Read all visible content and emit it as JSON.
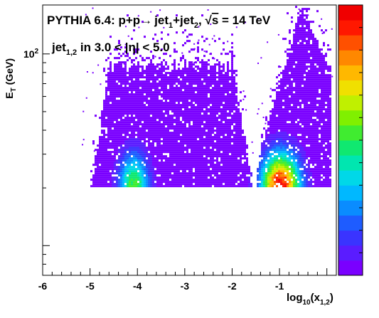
{
  "chart_data": {
    "type": "heatmap",
    "annotations": {
      "line1": {
        "pre": "PYTHIA 6.4: p+p",
        "arrow": "→",
        "j1": "jet",
        "j1sub": "1",
        "plus": "+jet",
        "j2sub": "2",
        "comma": ", ",
        "sqrt": "√",
        "s": "s",
        "energy": " = 14 TeV"
      },
      "line2": {
        "jet": "jet",
        "sub": "1,2",
        "cond": " in 3.0 < |η| < 5.0"
      }
    },
    "ylabel": {
      "main": "E",
      "sub": "T",
      "unit": " (GeV)"
    },
    "xlabel": {
      "main": "log",
      "sub1": "10",
      "paren": "(x",
      "sub2": "1,2",
      "close": ")"
    },
    "xlim": [
      -6.0,
      0.2
    ],
    "ylim": [
      7,
      180
    ],
    "yscale": "log",
    "x_ticks": [
      {
        "value": -6,
        "label": "-6"
      },
      {
        "value": -5,
        "label": "-5"
      },
      {
        "value": -4,
        "label": "-4"
      },
      {
        "value": -3,
        "label": "-3"
      },
      {
        "value": -2,
        "label": "-2"
      },
      {
        "value": -1,
        "label": "-1"
      }
    ],
    "y_ticks": [
      {
        "value": 100,
        "base": "10",
        "exp": "2"
      }
    ],
    "colors": {
      "palette": [
        "#7a00ff",
        "#5a1cff",
        "#3a34ff",
        "#1e5cff",
        "#0a8cff",
        "#00b8ff",
        "#00d8e8",
        "#00e6b0",
        "#10e870",
        "#40ec30",
        "#80f000",
        "#c0f000",
        "#f0e000",
        "#ffb800",
        "#ff8800",
        "#ff5000",
        "#ff1800",
        "#f00000"
      ],
      "scatter": "#7a00ff"
    },
    "clusters": [
      {
        "name": "",
        "x_center": -4.1,
        "et_floor": 20,
        "peak": 0.55
      },
      {
        "name": "",
        "x_center": -1.0,
        "et_floor": 20,
        "peak": 1.0
      }
    ],
    "grid": false,
    "legend": "none"
  }
}
